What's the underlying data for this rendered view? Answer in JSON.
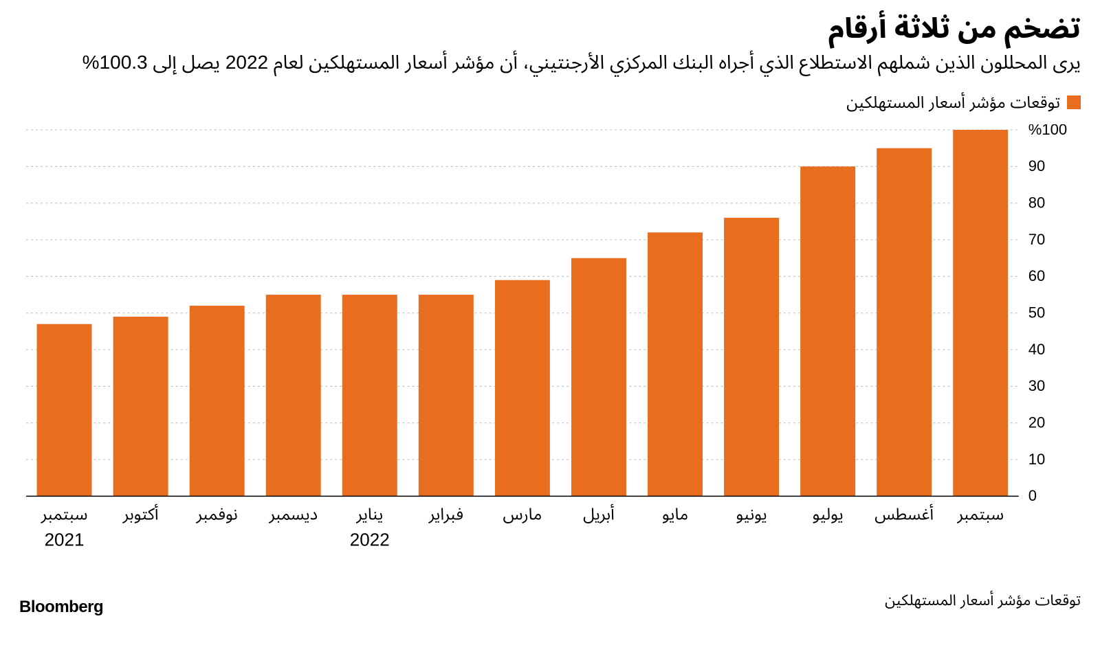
{
  "header": {
    "title": "تضخم من ثلاثة أرقام",
    "subtitle": "يرى المحللون الذين شملهم الاستطلاع الذي أجراه البنك المركزي الأرجنتيني، أن مؤشر أسعار المستهلكين لعام 2022 يصل إلى 100.3%"
  },
  "legend": {
    "label": "توقعات مؤشر أسعار المستهلكين",
    "swatch_color": "#e86d1f"
  },
  "chart": {
    "type": "bar",
    "bar_color": "#e86d1f",
    "background_color": "#ffffff",
    "grid_color": "#b8b8b8",
    "axis_color": "#000000",
    "text_color": "#000000",
    "y": {
      "min": 0,
      "max": 100,
      "tick_step": 10,
      "unit_label": "%100",
      "ticks": [
        0,
        10,
        20,
        30,
        40,
        50,
        60,
        70,
        80,
        90
      ]
    },
    "bar_width_ratio": 0.72,
    "categories": [
      {
        "month": "سبتمبر",
        "year": "2021",
        "value": 47
      },
      {
        "month": "أكتوبر",
        "year": "",
        "value": 49
      },
      {
        "month": "نوفمبر",
        "year": "",
        "value": 52
      },
      {
        "month": "ديسمبر",
        "year": "",
        "value": 55
      },
      {
        "month": "يناير",
        "year": "2022",
        "value": 55
      },
      {
        "month": "فبراير",
        "year": "",
        "value": 55
      },
      {
        "month": "مارس",
        "year": "",
        "value": 59
      },
      {
        "month": "أبريل",
        "year": "",
        "value": 65
      },
      {
        "month": "مايو",
        "year": "",
        "value": 72
      },
      {
        "month": "يونيو",
        "year": "",
        "value": 76
      },
      {
        "month": "يوليو",
        "year": "",
        "value": 90
      },
      {
        "month": "أغسطس",
        "year": "",
        "value": 95
      },
      {
        "month": "سبتمبر",
        "year": "",
        "value": 100
      }
    ]
  },
  "footer": {
    "brand": "Bloomberg",
    "source": "توقعات مؤشر أسعار المستهلكين"
  }
}
